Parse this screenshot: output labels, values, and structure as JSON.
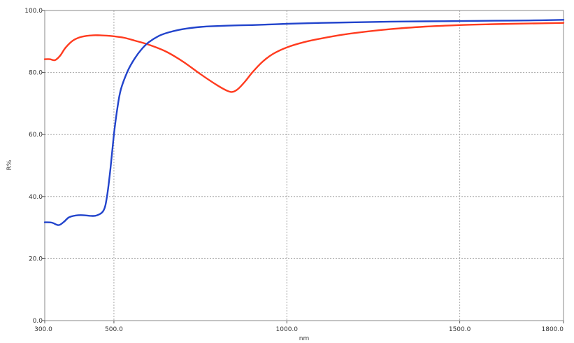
{
  "chart_data": {
    "type": "line",
    "title": "",
    "xlabel": "nm",
    "ylabel": "R%",
    "xlim": [
      300.0,
      1800.0
    ],
    "ylim": [
      0.0,
      100.0
    ],
    "x_ticks": [
      300.0,
      500.0,
      1000.0,
      1500.0,
      1800.0
    ],
    "x_tick_labels": [
      "300.0",
      "500.0",
      "1000.0",
      "1500.0",
      "1800.0"
    ],
    "y_ticks": [
      0.0,
      20.0,
      40.0,
      60.0,
      80.0,
      100.0
    ],
    "y_tick_labels": [
      "0.0",
      "20.0",
      "40.0",
      "60.0",
      "80.0",
      "100.0"
    ],
    "grid": true,
    "legend": "none",
    "series": [
      {
        "color": "#ff3b1f",
        "x": [
          300,
          315,
          330,
          345,
          360,
          380,
          400,
          420,
          440,
          460,
          480,
          500,
          530,
          560,
          600,
          650,
          700,
          750,
          800,
          830,
          845,
          860,
          880,
          900,
          930,
          960,
          1000,
          1050,
          1100,
          1150,
          1200,
          1300,
          1400,
          1500,
          1600,
          1700,
          1800
        ],
        "y": [
          84.3,
          84.3,
          84.0,
          85.5,
          88.0,
          90.2,
          91.3,
          91.8,
          92.0,
          92.0,
          91.9,
          91.7,
          91.2,
          90.3,
          89.0,
          86.8,
          83.5,
          79.5,
          75.8,
          74.0,
          73.8,
          74.8,
          77.2,
          80.0,
          83.5,
          86.0,
          88.1,
          89.8,
          91.0,
          92.0,
          92.8,
          94.0,
          94.8,
          95.3,
          95.6,
          95.8,
          96.0
        ]
      },
      {
        "color": "#2244cc",
        "x": [
          300,
          320,
          340,
          355,
          370,
          390,
          410,
          430,
          450,
          470,
          480,
          490,
          500,
          510,
          520,
          540,
          560,
          580,
          600,
          630,
          660,
          700,
          750,
          800,
          850,
          900,
          1000,
          1100,
          1200,
          1300,
          1400,
          1500,
          1600,
          1700,
          1800
        ],
        "y": [
          31.7,
          31.6,
          30.8,
          31.8,
          33.3,
          33.9,
          34.0,
          33.8,
          33.9,
          35.5,
          40.0,
          49.0,
          60.0,
          68.5,
          74.5,
          80.5,
          84.5,
          87.5,
          89.7,
          91.8,
          93.0,
          94.0,
          94.7,
          95.0,
          95.2,
          95.3,
          95.7,
          96.0,
          96.2,
          96.4,
          96.5,
          96.6,
          96.7,
          96.8,
          97.0
        ]
      }
    ]
  }
}
